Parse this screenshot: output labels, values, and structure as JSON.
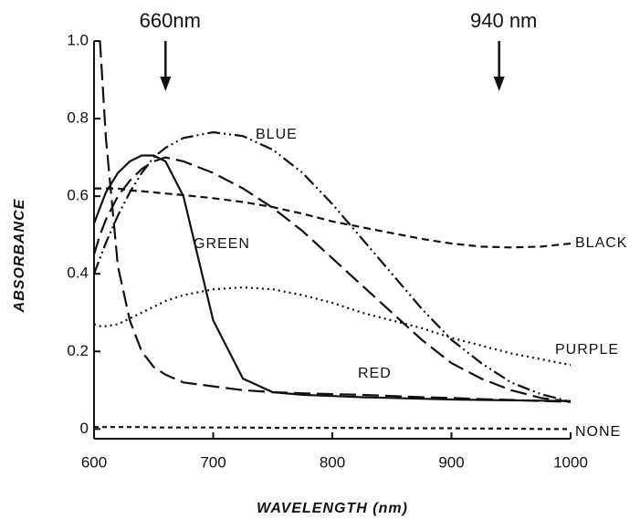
{
  "chart_data": {
    "type": "line",
    "xlabel": "WAVELENGTH (nm)",
    "ylabel": "ABSORBANCE",
    "annotations": [
      {
        "text": "660nm",
        "x": 660
      },
      {
        "text": "940 nm",
        "x": 940
      }
    ],
    "x": [
      600,
      605,
      610,
      620,
      630,
      640,
      650,
      660,
      675,
      700,
      725,
      750,
      775,
      800,
      825,
      850,
      875,
      900,
      925,
      950,
      975,
      1000
    ],
    "xlim": [
      600,
      1000
    ],
    "xticks": [
      600,
      700,
      800,
      900,
      1000
    ],
    "ylim": [
      -0.025,
      1.0
    ],
    "yticks": [
      {
        "value": 0,
        "label": "0"
      },
      {
        "value": 0.2,
        "label": "0.2"
      },
      {
        "value": 0.4,
        "label": "0.4"
      },
      {
        "value": 0.6,
        "label": "0.6"
      },
      {
        "value": 0.8,
        "label": "0.8"
      },
      {
        "value": 1.0,
        "label": "1.0"
      }
    ],
    "series": [
      {
        "name": "BLUE",
        "color": "#111111",
        "dash": "dash-dot-dot",
        "values": [
          0.4,
          0.44,
          0.48,
          0.55,
          0.61,
          0.66,
          0.7,
          0.725,
          0.75,
          0.765,
          0.755,
          0.72,
          0.66,
          0.58,
          0.49,
          0.4,
          0.31,
          0.23,
          0.17,
          0.12,
          0.09,
          0.07
        ]
      },
      {
        "name": "BLACK",
        "color": "#111111",
        "dash": "dashed",
        "values": [
          0.62,
          0.62,
          0.62,
          0.62,
          0.615,
          0.613,
          0.61,
          0.607,
          0.603,
          0.595,
          0.585,
          0.572,
          0.555,
          0.535,
          0.52,
          0.505,
          0.49,
          0.478,
          0.47,
          0.468,
          0.47,
          0.478
        ]
      },
      {
        "name": "GREEN",
        "color": "#111111",
        "dash": "solid",
        "values": [
          0.53,
          0.57,
          0.61,
          0.66,
          0.69,
          0.705,
          0.705,
          0.69,
          0.6,
          0.28,
          0.13,
          0.095,
          0.088,
          0.085,
          0.082,
          0.08,
          0.078,
          0.076,
          0.075,
          0.074,
          0.073,
          0.072
        ]
      },
      {
        "color": "#111111",
        "dash": "long-dash",
        "values": [
          0.45,
          0.5,
          0.54,
          0.6,
          0.64,
          0.67,
          0.69,
          0.7,
          0.69,
          0.66,
          0.62,
          0.57,
          0.51,
          0.44,
          0.37,
          0.3,
          0.23,
          0.17,
          0.13,
          0.1,
          0.08,
          0.07
        ]
      },
      {
        "name": "PURPLE",
        "color": "#111111",
        "dash": "dotted",
        "values": [
          0.27,
          0.265,
          0.265,
          0.27,
          0.285,
          0.3,
          0.315,
          0.33,
          0.345,
          0.36,
          0.365,
          0.36,
          0.345,
          0.325,
          0.3,
          0.28,
          0.26,
          0.235,
          0.215,
          0.195,
          0.18,
          0.165
        ]
      },
      {
        "name": "RED",
        "color": "#111111",
        "dash": "long-dash",
        "values": [
          null,
          1.0,
          0.75,
          0.42,
          0.28,
          0.2,
          0.16,
          0.14,
          0.12,
          0.11,
          0.1,
          0.095,
          0.092,
          0.09,
          0.088,
          0.085,
          0.082,
          0.08,
          0.077,
          0.075,
          0.072,
          0.07
        ]
      },
      {
        "name": "NONE",
        "color": "#111111",
        "dash": "short-dash",
        "values": [
          0.005,
          0.005,
          0.005,
          0.005,
          0.005,
          0.005,
          0.004,
          0.004,
          0.004,
          0.004,
          0.004,
          0.003,
          0.003,
          0.003,
          0.003,
          0.002,
          0.002,
          0.002,
          0.001,
          0.001,
          0.0,
          0.0
        ]
      }
    ]
  }
}
